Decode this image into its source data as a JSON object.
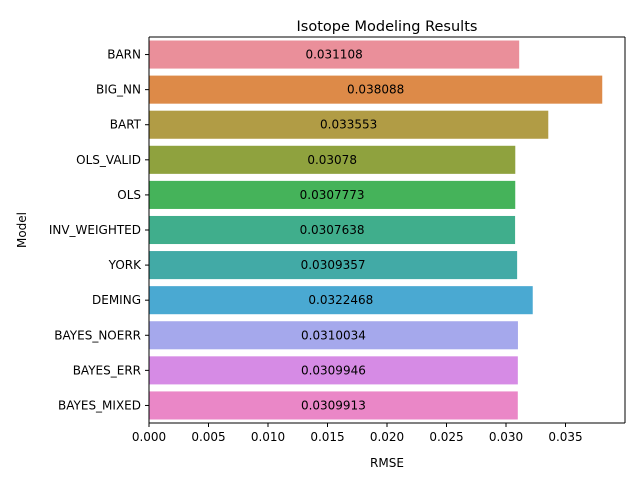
{
  "chart_data": {
    "type": "bar",
    "orientation": "horizontal",
    "title": "Isotope Modeling Results",
    "xlabel": "RMSE",
    "ylabel": "Model",
    "xlim": [
      0,
      0.04
    ],
    "grid": false,
    "legend": "none",
    "xticks": [
      "0.000",
      "0.005",
      "0.010",
      "0.015",
      "0.020",
      "0.025",
      "0.030",
      "0.035"
    ],
    "categories": [
      "BARN",
      "BIG_NN",
      "BART",
      "OLS_VALID",
      "OLS",
      "INV_WEIGHTED",
      "YORK",
      "DEMING",
      "BAYES_NOERR",
      "BAYES_ERR",
      "BAYES_MIXED"
    ],
    "values": [
      0.031108,
      0.038088,
      0.033553,
      0.03078,
      0.0307773,
      0.0307638,
      0.0309357,
      0.0322468,
      0.0310034,
      0.0309946,
      0.0309913
    ],
    "labels": [
      "0.031108",
      "0.038088",
      "0.033553",
      "0.03078",
      "0.0307773",
      "0.0307638",
      "0.0309357",
      "0.0322468",
      "0.0310034",
      "0.0309946",
      "0.0309913"
    ],
    "colors": [
      "#ea8f9a",
      "#dd8a48",
      "#b19c45",
      "#8fa23e",
      "#45b35a",
      "#40ae8c",
      "#42aaa6",
      "#4aa9d2",
      "#a5a8ec",
      "#d68be5",
      "#ea87c7"
    ]
  }
}
